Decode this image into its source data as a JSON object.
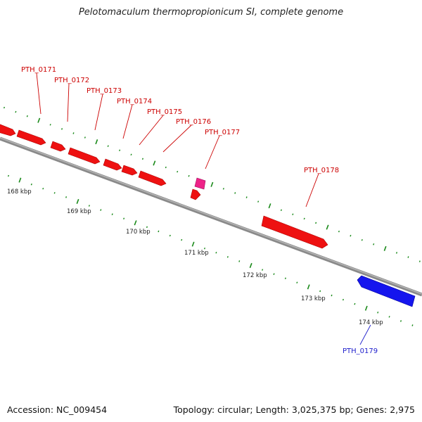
{
  "title": "Pelotomaculum thermopropionicum SI, complete genome",
  "footer": {
    "accession": "Accession: NC_009454",
    "summary": "Topology: circular; Length: 3,025,375 bp; Genes: 2,975"
  },
  "colors": {
    "forward_gene": "#ee1111",
    "reverse_gene": "#1515ee",
    "rna_gene": "#ee2288",
    "backbone": "#8a8a8a",
    "tick": "#1a8a1a",
    "label_red": "#cc0000",
    "label_blue": "#1f1fcc"
  },
  "genes": [
    {
      "label": "",
      "strand": "forward",
      "type": "cds"
    },
    {
      "label": "PTH_0171",
      "strand": "forward",
      "type": "cds"
    },
    {
      "label": "PTH_0172",
      "strand": "forward",
      "type": "cds"
    },
    {
      "label": "PTH_0173",
      "strand": "forward",
      "type": "cds"
    },
    {
      "label": "PTH_0174",
      "strand": "forward",
      "type": "cds"
    },
    {
      "label": "PTH_0175",
      "strand": "forward",
      "type": "cds"
    },
    {
      "label": "PTH_0176",
      "strand": "forward",
      "type": "cds"
    },
    {
      "label": "PTH_0177",
      "strand": "forward",
      "type": "rna"
    },
    {
      "label": "",
      "strand": "forward",
      "type": "cds"
    },
    {
      "label": "PTH_0178",
      "strand": "forward",
      "type": "cds"
    },
    {
      "label": "PTH_0179",
      "strand": "reverse",
      "type": "cds"
    }
  ],
  "kbp_labels": [
    "168 kbp",
    "169 kbp",
    "170 kbp",
    "171 kbp",
    "172 kbp",
    "173 kbp",
    "174 kbp"
  ]
}
